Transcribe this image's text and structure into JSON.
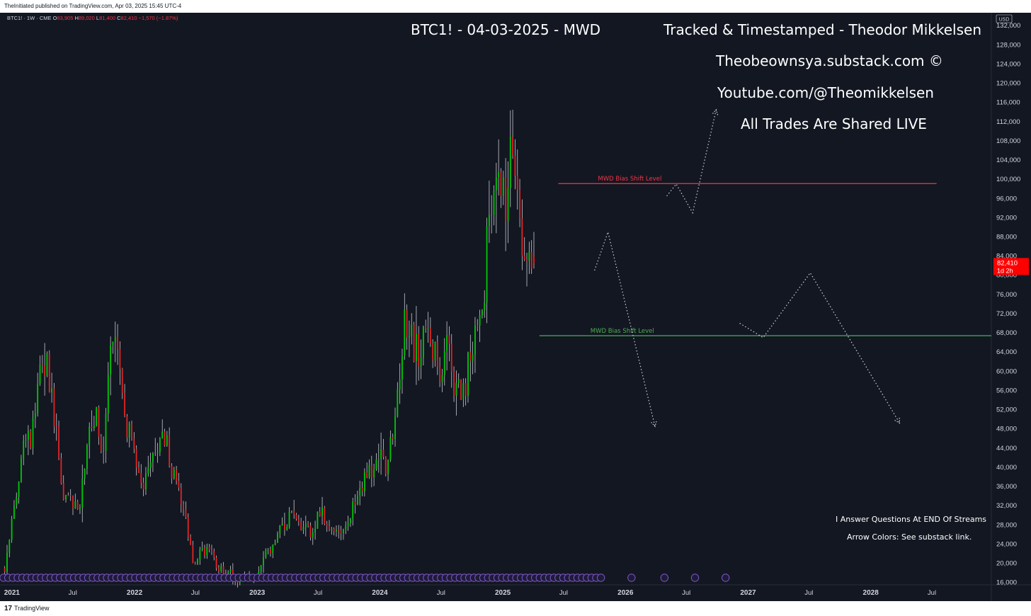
{
  "header": {
    "published": "TheInitiated published on TradingView.com, Apr 03, 2025 15:45 UTC-4"
  },
  "legend": {
    "symbol": "BTC1! · 1W · CME",
    "o_label": "O",
    "o": "83,905",
    "h_label": "H",
    "h": "89,020",
    "l_label": "L",
    "l": "81,400",
    "c_label": "C",
    "c": "82,410",
    "change": "−1,570 (−1.87%)"
  },
  "overlay": {
    "title": "BTC1! - 04-03-2025 - MWD",
    "line1": "Tracked & Timestamped - Theodor Mikkelsen",
    "line2": "Theobeownsya.substack.com ©",
    "line3": "Youtube.com/@Theomikkelsen",
    "line4": "All Trades Are Shared LIVE",
    "note1": "I Answer Questions At END Of Streams",
    "note2": "Arrow Colors: See substack link."
  },
  "footer": {
    "logo": "17",
    "brand": "TradingView"
  },
  "colors": {
    "background": "#131722",
    "up": "#00c805",
    "down": "#e02424",
    "upper_level": "#f23645",
    "lower_level": "#4caf50",
    "price_tag": "#ff0000",
    "projection": "#d1d4dc",
    "events": "#7e57c2"
  },
  "chart_data": {
    "type": "candlestick",
    "timeframe": "1W",
    "currency": "USD",
    "y_ticks": [
      16000,
      20000,
      24000,
      28000,
      32000,
      36000,
      40000,
      44000,
      48000,
      52000,
      56000,
      60000,
      64000,
      68000,
      72000,
      76000,
      80000,
      84000,
      88000,
      92000,
      96000,
      100000,
      104000,
      108000,
      112000,
      116000,
      120000,
      124000,
      128000,
      132000
    ],
    "y_tick_labels": [
      "16,000",
      "20,000",
      "24,000",
      "28,000",
      "32,000",
      "36,000",
      "40,000",
      "44,000",
      "48,000",
      "52,000",
      "56,000",
      "60,000",
      "64,000",
      "68,000",
      "72,000",
      "76,000",
      "80,000",
      "84,000",
      "88,000",
      "92,000",
      "96,000",
      "100,000",
      "104,000",
      "108,000",
      "112,000",
      "116,000",
      "120,000",
      "124,000",
      "128,000",
      "132,000"
    ],
    "ylim": [
      15500,
      133800
    ],
    "x_start": "2020-12-07",
    "x_ticks": [
      {
        "date": "2021-01-01",
        "label": "2021",
        "major": true
      },
      {
        "date": "2021-07-01",
        "label": "Jul",
        "major": false
      },
      {
        "date": "2022-01-01",
        "label": "2022",
        "major": true
      },
      {
        "date": "2022-07-01",
        "label": "Jul",
        "major": false
      },
      {
        "date": "2023-01-01",
        "label": "2023",
        "major": true
      },
      {
        "date": "2023-07-01",
        "label": "Jul",
        "major": false
      },
      {
        "date": "2024-01-01",
        "label": "2024",
        "major": true
      },
      {
        "date": "2024-07-01",
        "label": "Jul",
        "major": false
      },
      {
        "date": "2025-01-01",
        "label": "2025",
        "major": true
      },
      {
        "date": "2025-07-01",
        "label": "Jul",
        "major": false
      },
      {
        "date": "2026-01-01",
        "label": "2026",
        "major": true
      },
      {
        "date": "2026-07-01",
        "label": "Jul",
        "major": false
      },
      {
        "date": "2027-01-01",
        "label": "2027",
        "major": true
      },
      {
        "date": "2027-07-01",
        "label": "Jul",
        "major": false
      },
      {
        "date": "2028-01-01",
        "label": "2028",
        "major": true
      },
      {
        "date": "2028-07-01",
        "label": "Jul",
        "major": false
      }
    ],
    "xlim": [
      "2020-12-07",
      "2028-12-25"
    ],
    "close_anchors": [
      [
        "2020-12-07",
        19000
      ],
      [
        "2021-01-04",
        33000
      ],
      [
        "2021-02-08",
        46000
      ],
      [
        "2021-02-22",
        46000
      ],
      [
        "2021-03-15",
        58000
      ],
      [
        "2021-04-12",
        62000
      ],
      [
        "2021-05-10",
        47000
      ],
      [
        "2021-05-24",
        36000
      ],
      [
        "2021-06-21",
        33000
      ],
      [
        "2021-07-19",
        31000
      ],
      [
        "2021-08-09",
        46000
      ],
      [
        "2021-09-06",
        50000
      ],
      [
        "2021-09-27",
        43000
      ],
      [
        "2021-10-18",
        63000
      ],
      [
        "2021-11-08",
        65000
      ],
      [
        "2021-12-06",
        49000
      ],
      [
        "2022-01-03",
        42000
      ],
      [
        "2022-01-24",
        37000
      ],
      [
        "2022-02-14",
        43000
      ],
      [
        "2022-03-28",
        46000
      ],
      [
        "2022-05-02",
        36000
      ],
      [
        "2022-05-30",
        30000
      ],
      [
        "2022-06-20",
        20500
      ],
      [
        "2022-07-25",
        23000
      ],
      [
        "2022-09-05",
        19500
      ],
      [
        "2022-11-07",
        16500
      ],
      [
        "2022-12-26",
        16600
      ],
      [
        "2023-01-16",
        21000
      ],
      [
        "2023-02-13",
        24000
      ],
      [
        "2023-03-20",
        28000
      ],
      [
        "2023-04-10",
        30000
      ],
      [
        "2023-06-05",
        26000
      ],
      [
        "2023-07-03",
        30500
      ],
      [
        "2023-08-21",
        26000
      ],
      [
        "2023-09-18",
        26800
      ],
      [
        "2023-10-23",
        34500
      ],
      [
        "2023-11-20",
        37500
      ],
      [
        "2023-12-18",
        43000
      ],
      [
        "2024-01-22",
        40000
      ],
      [
        "2024-02-12",
        52000
      ],
      [
        "2024-03-11",
        69000
      ],
      [
        "2024-04-15",
        64000
      ],
      [
        "2024-05-20",
        68000
      ],
      [
        "2024-06-24",
        61000
      ],
      [
        "2024-07-22",
        68000
      ],
      [
        "2024-08-05",
        58000
      ],
      [
        "2024-09-02",
        55000
      ],
      [
        "2024-09-23",
        64000
      ],
      [
        "2024-10-14",
        68000
      ],
      [
        "2024-11-04",
        76000
      ],
      [
        "2024-11-11",
        90000
      ],
      [
        "2024-12-16",
        104000
      ],
      [
        "2025-01-06",
        96000
      ],
      [
        "2025-01-20",
        105000
      ],
      [
        "2025-02-10",
        97000
      ],
      [
        "2025-02-24",
        86000
      ],
      [
        "2025-03-10",
        82000
      ],
      [
        "2025-03-31",
        82410
      ]
    ],
    "last_price": "82,410",
    "countdown": "1d 2h",
    "levels": [
      {
        "name": "MWD Bias Shift Level",
        "value": 99100,
        "from": "2025-06-15",
        "to": "2028-07-15",
        "color": "#f23645"
      },
      {
        "name": "MWD Bias Shift Level",
        "value": 67400,
        "from": "2025-04-20",
        "to": "2028-12-25",
        "color": "#4caf50"
      }
    ],
    "projections": [
      [
        [
          "2025-10-01",
          81000
        ],
        [
          "2025-11-10",
          89000
        ],
        [
          "2026-03-30",
          48500
        ]
      ],
      [
        [
          "2026-05-04",
          96500
        ],
        [
          "2026-06-01",
          99000
        ],
        [
          "2026-07-20",
          93000
        ],
        [
          "2026-09-28",
          114500
        ]
      ],
      [
        [
          "2026-12-07",
          70000
        ],
        [
          "2027-02-15",
          67000
        ],
        [
          "2027-07-05",
          80500
        ],
        [
          "2028-03-27",
          49200
        ]
      ]
    ],
    "event_marker_start": "2020-12-07",
    "event_marker_end": "2025-10-20",
    "event_marker_future": [
      "2026-01-19",
      "2026-04-27",
      "2026-07-27",
      "2026-10-26"
    ]
  }
}
